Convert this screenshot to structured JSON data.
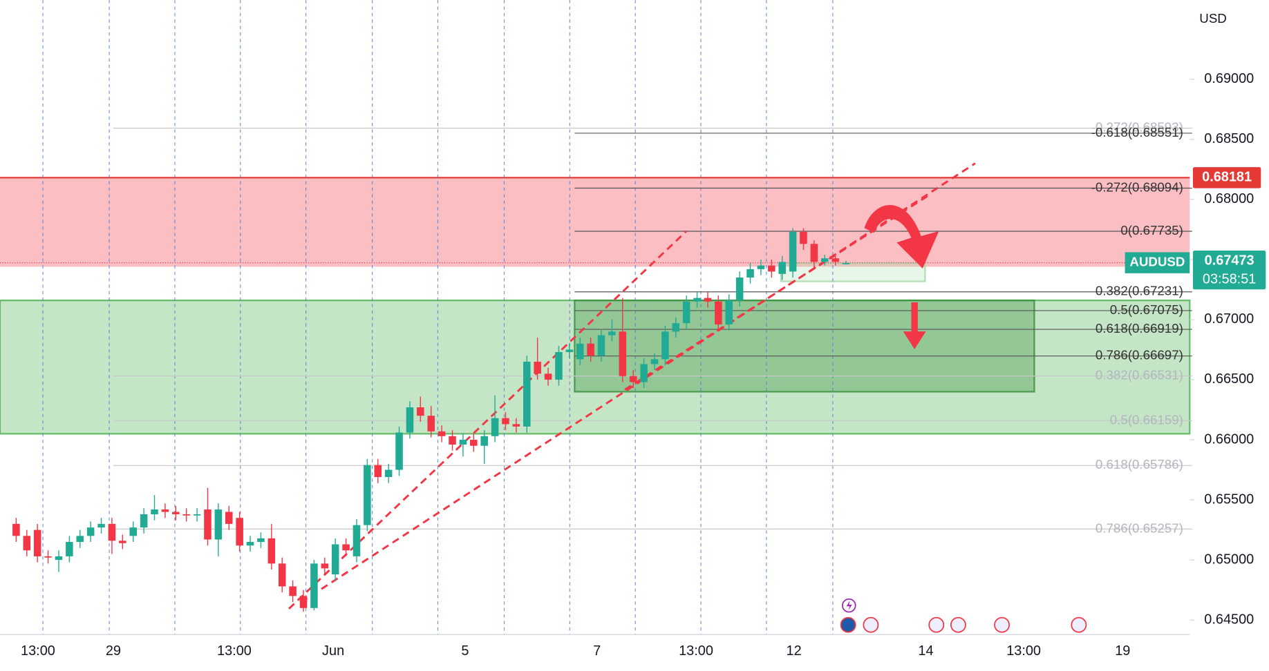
{
  "chart_data": {
    "type": "candlestick",
    "currency": "USD",
    "series": [
      {
        "name": "AUDUSD",
        "up_color": "#22ab94",
        "down_color": "#f23645",
        "open": [
          0.653,
          0.652,
          0.6525,
          0.6503,
          0.65,
          0.6503,
          0.6515,
          0.652,
          0.6527,
          0.653,
          0.6516,
          0.652,
          0.6527,
          0.6538,
          0.6542,
          0.654,
          0.6538,
          0.6537,
          0.6542,
          0.6517,
          0.654,
          0.6535,
          0.6512,
          0.6515,
          0.6518,
          0.6497,
          0.6478,
          0.647,
          0.646,
          0.6497,
          0.6488,
          0.6513,
          0.6503,
          0.6529,
          0.6579,
          0.6569,
          0.6575,
          0.6606,
          0.6627,
          0.662,
          0.6607,
          0.6603,
          0.6596,
          0.66,
          0.6595,
          0.6603,
          0.6618,
          0.6613,
          0.6611,
          0.6665,
          0.6655,
          0.665,
          0.6673,
          0.6667,
          0.668,
          0.667,
          0.6687,
          0.669,
          0.6653,
          0.6648,
          0.6663,
          0.6667,
          0.669,
          0.6697,
          0.6715,
          0.6718,
          0.6715,
          0.6696,
          0.6716,
          0.6735,
          0.6742,
          0.6745,
          0.6738,
          0.674,
          0.6773,
          0.6763,
          0.6748,
          0.6751,
          0.6747
        ],
        "high": [
          0.6535,
          0.6525,
          0.653,
          0.6508,
          0.6508,
          0.652,
          0.6525,
          0.6532,
          0.6535,
          0.6535,
          0.6521,
          0.6532,
          0.6543,
          0.6554,
          0.6547,
          0.6545,
          0.6543,
          0.6543,
          0.656,
          0.6547,
          0.6545,
          0.654,
          0.652,
          0.6523,
          0.653,
          0.6502,
          0.6483,
          0.6475,
          0.65,
          0.6502,
          0.6518,
          0.6518,
          0.6534,
          0.6584,
          0.6584,
          0.658,
          0.6611,
          0.6632,
          0.6636,
          0.6628,
          0.6612,
          0.6608,
          0.6605,
          0.6605,
          0.6608,
          0.6637,
          0.6623,
          0.6618,
          0.667,
          0.6685,
          0.666,
          0.6678,
          0.668,
          0.6685,
          0.6685,
          0.6692,
          0.67,
          0.6718,
          0.6658,
          0.6668,
          0.6672,
          0.6695,
          0.6702,
          0.672,
          0.6723,
          0.6723,
          0.672,
          0.6721,
          0.674,
          0.6747,
          0.675,
          0.675,
          0.6753,
          0.6776,
          0.6776,
          0.6766,
          0.6754,
          0.6753,
          0.6749
        ],
        "low": [
          0.6515,
          0.6503,
          0.6498,
          0.6497,
          0.649,
          0.6498,
          0.651,
          0.6515,
          0.6522,
          0.6505,
          0.6509,
          0.6515,
          0.6522,
          0.6533,
          0.6535,
          0.6533,
          0.6532,
          0.6532,
          0.6512,
          0.6503,
          0.6525,
          0.6507,
          0.6507,
          0.651,
          0.6492,
          0.6473,
          0.6465,
          0.6457,
          0.6458,
          0.6488,
          0.6483,
          0.6503,
          0.6498,
          0.6524,
          0.6564,
          0.6564,
          0.657,
          0.6601,
          0.6615,
          0.6602,
          0.6598,
          0.6591,
          0.6586,
          0.659,
          0.658,
          0.6598,
          0.6608,
          0.6606,
          0.6606,
          0.665,
          0.6645,
          0.6645,
          0.6668,
          0.6662,
          0.6665,
          0.6665,
          0.6682,
          0.6648,
          0.6643,
          0.6643,
          0.6658,
          0.6662,
          0.6685,
          0.6692,
          0.671,
          0.671,
          0.6691,
          0.6691,
          0.6711,
          0.673,
          0.6737,
          0.6735,
          0.6733,
          0.6735,
          0.6758,
          0.6743,
          0.6745,
          0.6745,
          0.6746
        ],
        "close": [
          0.652,
          0.6508,
          0.6503,
          0.6502,
          0.6503,
          0.6515,
          0.652,
          0.6527,
          0.653,
          0.6516,
          0.6514,
          0.6527,
          0.6538,
          0.6542,
          0.654,
          0.6538,
          0.6537,
          0.6538,
          0.6517,
          0.6542,
          0.653,
          0.6512,
          0.6515,
          0.6518,
          0.6497,
          0.6478,
          0.647,
          0.646,
          0.6497,
          0.6493,
          0.6513,
          0.6508,
          0.6529,
          0.6579,
          0.6569,
          0.6575,
          0.6606,
          0.6627,
          0.662,
          0.6607,
          0.6603,
          0.6596,
          0.66,
          0.6595,
          0.6603,
          0.6618,
          0.6613,
          0.6611,
          0.6665,
          0.6655,
          0.665,
          0.6673,
          0.6675,
          0.668,
          0.667,
          0.6687,
          0.669,
          0.6653,
          0.6648,
          0.6663,
          0.6667,
          0.669,
          0.6697,
          0.6715,
          0.6718,
          0.6715,
          0.6696,
          0.6716,
          0.6735,
          0.6742,
          0.6745,
          0.674,
          0.6748,
          0.6773,
          0.6763,
          0.6748,
          0.6751,
          0.6748,
          0.6747
        ]
      }
    ],
    "last_price": {
      "value": 0.67473,
      "label": "0.67473"
    },
    "countdown": "03:58:51",
    "alert_price": {
      "value": 0.68181,
      "label": "0.68181"
    },
    "xlim": [
      -1.52,
      110.3
    ],
    "ylim": [
      0.64379,
      0.69659
    ],
    "xticks": [
      {
        "value": 2.05,
        "label": "13:00"
      },
      {
        "value": 9.13,
        "label": "29"
      },
      {
        "value": 20.5,
        "label": "13:00"
      },
      {
        "value": 29.8,
        "label": "Jun"
      },
      {
        "value": 42.2,
        "label": "5"
      },
      {
        "value": 54.6,
        "label": "7"
      },
      {
        "value": 63.9,
        "label": "13:00"
      },
      {
        "value": 73.1,
        "label": "12"
      },
      {
        "value": 85.5,
        "label": "14"
      },
      {
        "value": 94.7,
        "label": "13:00"
      },
      {
        "value": 104,
        "label": "19"
      }
    ],
    "yticks": [
      {
        "value": 0.645,
        "label": "0.64500"
      },
      {
        "value": 0.65,
        "label": "0.65000"
      },
      {
        "value": 0.655,
        "label": "0.65500"
      },
      {
        "value": 0.66,
        "label": "0.66000"
      },
      {
        "value": 0.665,
        "label": "0.66500"
      },
      {
        "value": 0.67,
        "label": "0.67000"
      },
      {
        "value": 0.675,
        "label": "0.67500"
      },
      {
        "value": 0.68,
        "label": "0.68000"
      },
      {
        "value": 0.685,
        "label": "0.68500"
      },
      {
        "value": 0.69,
        "label": "0.69000"
      }
    ],
    "zones": [
      {
        "low": 0.6744,
        "high": 0.68181,
        "color": "#f23645"
      },
      {
        "low": 0.6605,
        "high": 0.6716,
        "color": "#4caf50"
      },
      {
        "low": 0.664,
        "high": 0.6716,
        "color": "#388e3c"
      },
      {
        "low": 0.67318,
        "high": 0.6747,
        "color": "#a5d6a7"
      }
    ],
    "fib_levels_faded": [
      {
        "value": 0.68593,
        "label": "-0.272(0.68593)"
      },
      {
        "value": 0.66531,
        "label": "0.382(0.66531)"
      },
      {
        "value": 0.66159,
        "label": "0.5(0.66159)"
      },
      {
        "value": 0.65786,
        "label": "0.618(0.65786)"
      },
      {
        "value": 0.65257,
        "label": "0.786(0.65257)"
      }
    ],
    "fib_levels": [
      {
        "value": 0.68551,
        "label": "-0.618(0.68551)"
      },
      {
        "value": 0.68094,
        "label": "-0.272(0.68094)"
      },
      {
        "value": 0.67735,
        "label": "0(0.67735)"
      },
      {
        "value": 0.67231,
        "label": "0.382(0.67231)"
      },
      {
        "value": 0.67075,
        "label": "0.5(0.67075)"
      },
      {
        "value": 0.66919,
        "label": "0.618(0.66919)"
      },
      {
        "value": 0.66697,
        "label": "0.786(0.66697)"
      }
    ]
  }
}
